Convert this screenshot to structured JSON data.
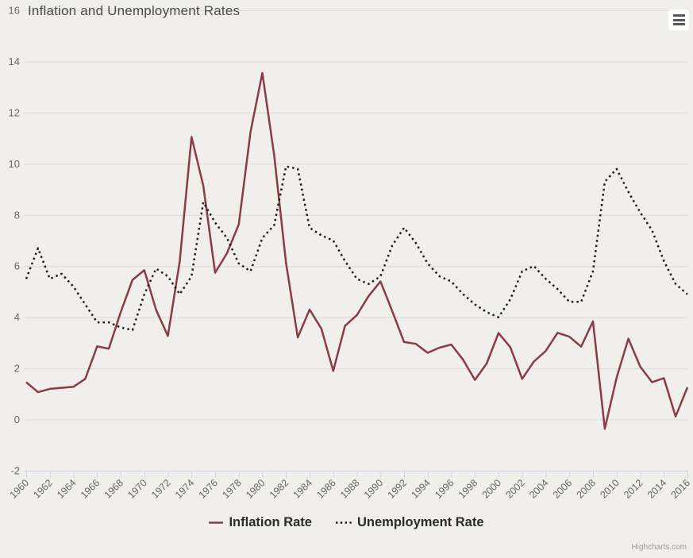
{
  "header": {
    "title": "Inflation and Unemployment Rates"
  },
  "credits_label": "Highcharts.com",
  "colors": {
    "background": "#f0efec",
    "gridline": "#dddcd8",
    "axis_line": "#ccd6eb",
    "axis_label": "#666666",
    "title_text": "#4a4a4a",
    "legend_text": "#2b2b2b",
    "inflation_series": "#8b3b44",
    "unemployment_series": "#1e1e1e"
  },
  "chart_data": {
    "type": "line",
    "title": "Inflation and Unemployment Rates",
    "xlabel": "",
    "ylabel": "",
    "ylim": [
      -2,
      16
    ],
    "ytick_step": 2,
    "ytick_labels": [
      "-2",
      "0",
      "2",
      "4",
      "6",
      "8",
      "10",
      "12",
      "14",
      "16"
    ],
    "xtick_labels": [
      "1960",
      "1962",
      "1964",
      "1966",
      "1968",
      "1970",
      "1972",
      "1974",
      "1976",
      "1978",
      "1980",
      "1982",
      "1984",
      "1986",
      "1988",
      "1990",
      "1992",
      "1994",
      "1996",
      "1998",
      "2000",
      "2002",
      "2004",
      "2006",
      "2008",
      "2010",
      "2012",
      "2014",
      "2016"
    ],
    "grid": true,
    "legend_position": "bottom",
    "x": [
      1960,
      1961,
      1962,
      1963,
      1964,
      1965,
      1966,
      1967,
      1968,
      1969,
      1970,
      1971,
      1972,
      1973,
      1974,
      1975,
      1976,
      1977,
      1978,
      1979,
      1980,
      1981,
      1982,
      1983,
      1984,
      1985,
      1986,
      1987,
      1988,
      1989,
      1990,
      1991,
      1992,
      1993,
      1994,
      1995,
      1996,
      1997,
      1998,
      1999,
      2000,
      2001,
      2002,
      2003,
      2004,
      2005,
      2006,
      2007,
      2008,
      2009,
      2010,
      2011,
      2012,
      2013,
      2014,
      2015,
      2016
    ],
    "series": [
      {
        "name": "Inflation Rate",
        "color": "#8b3b44",
        "dash": "solid",
        "values": [
          1.46,
          1.07,
          1.2,
          1.24,
          1.28,
          1.59,
          2.86,
          2.77,
          4.19,
          5.46,
          5.84,
          4.29,
          3.27,
          6.18,
          11.05,
          9.14,
          5.74,
          6.5,
          7.63,
          11.25,
          13.55,
          10.33,
          6.13,
          3.21,
          4.3,
          3.55,
          1.9,
          3.66,
          4.08,
          4.83,
          5.4,
          4.24,
          3.03,
          2.96,
          2.61,
          2.81,
          2.93,
          2.34,
          1.55,
          2.19,
          3.38,
          2.83,
          1.59,
          2.27,
          2.68,
          3.39,
          3.24,
          2.85,
          3.84,
          -0.36,
          1.64,
          3.16,
          2.07,
          1.46,
          1.62,
          0.12,
          1.26
        ]
      },
      {
        "name": "Unemployment Rate",
        "color": "#1e1e1e",
        "dash": "dot",
        "values": [
          5.5,
          6.7,
          5.5,
          5.7,
          5.2,
          4.5,
          3.8,
          3.8,
          3.6,
          3.5,
          4.9,
          5.9,
          5.6,
          4.9,
          5.6,
          8.5,
          7.7,
          7.1,
          6.1,
          5.8,
          7.1,
          7.6,
          9.9,
          9.8,
          7.5,
          7.2,
          7.0,
          6.2,
          5.5,
          5.3,
          5.6,
          6.8,
          7.5,
          6.9,
          6.1,
          5.6,
          5.4,
          4.9,
          4.5,
          4.2,
          4.0,
          4.7,
          5.8,
          6.0,
          5.5,
          5.1,
          4.6,
          4.6,
          5.8,
          9.3,
          9.8,
          8.9,
          8.1,
          7.4,
          6.2,
          5.3,
          4.9
        ]
      }
    ]
  }
}
